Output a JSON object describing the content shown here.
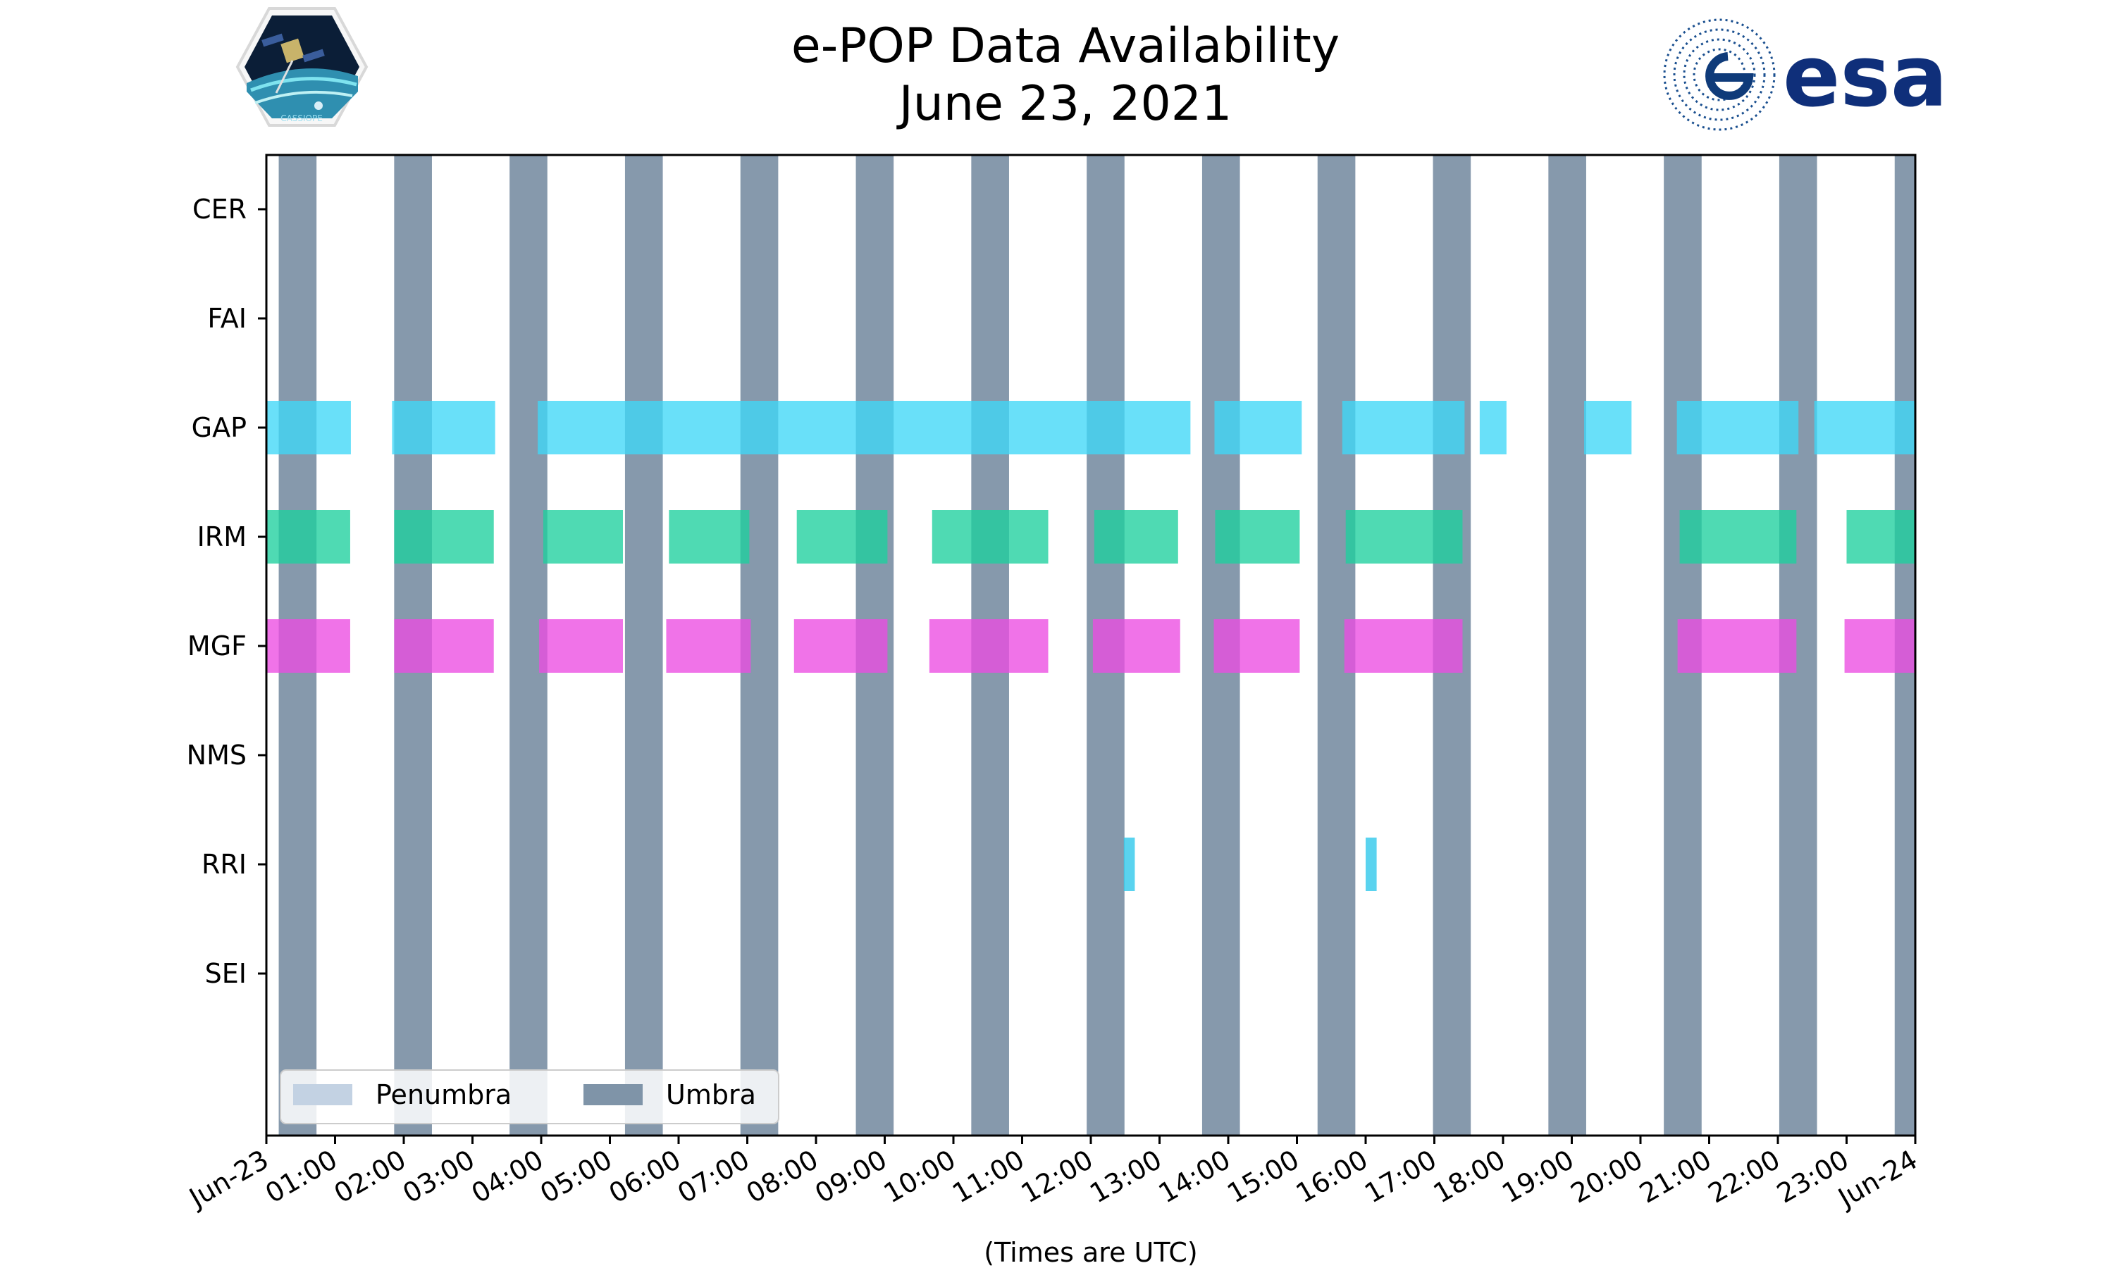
{
  "chart_data": {
    "type": "timeline",
    "title": "e-POP Data Availability",
    "subtitle": "June 23, 2021",
    "xlabel": "(Times are UTC)",
    "x_unit": "hours UTC",
    "xlim": [
      0,
      24
    ],
    "x_ticks": [
      {
        "hour": 0,
        "label": "Jun-23"
      },
      {
        "hour": 1,
        "label": "01:00"
      },
      {
        "hour": 2,
        "label": "02:00"
      },
      {
        "hour": 3,
        "label": "03:00"
      },
      {
        "hour": 4,
        "label": "04:00"
      },
      {
        "hour": 5,
        "label": "05:00"
      },
      {
        "hour": 6,
        "label": "06:00"
      },
      {
        "hour": 7,
        "label": "07:00"
      },
      {
        "hour": 8,
        "label": "08:00"
      },
      {
        "hour": 9,
        "label": "09:00"
      },
      {
        "hour": 10,
        "label": "10:00"
      },
      {
        "hour": 11,
        "label": "11:00"
      },
      {
        "hour": 12,
        "label": "12:00"
      },
      {
        "hour": 13,
        "label": "13:00"
      },
      {
        "hour": 14,
        "label": "14:00"
      },
      {
        "hour": 15,
        "label": "15:00"
      },
      {
        "hour": 16,
        "label": "16:00"
      },
      {
        "hour": 17,
        "label": "17:00"
      },
      {
        "hour": 18,
        "label": "18:00"
      },
      {
        "hour": 19,
        "label": "19:00"
      },
      {
        "hour": 20,
        "label": "20:00"
      },
      {
        "hour": 21,
        "label": "21:00"
      },
      {
        "hour": 22,
        "label": "22:00"
      },
      {
        "hour": 23,
        "label": "23:00"
      },
      {
        "hour": 24,
        "label": "Jun-24"
      }
    ],
    "instruments": [
      "CER",
      "FAI",
      "GAP",
      "IRM",
      "MGF",
      "NMS",
      "RRI",
      "SEI"
    ],
    "umbra": [
      [
        0.18,
        0.73
      ],
      [
        1.86,
        2.41
      ],
      [
        3.54,
        4.09
      ],
      [
        5.22,
        5.77
      ],
      [
        6.9,
        7.45
      ],
      [
        8.58,
        9.13
      ],
      [
        10.26,
        10.81
      ],
      [
        11.94,
        12.49
      ],
      [
        13.62,
        14.17
      ],
      [
        15.3,
        15.85
      ],
      [
        16.98,
        17.53
      ],
      [
        18.66,
        19.21
      ],
      [
        20.34,
        20.89
      ],
      [
        22.02,
        22.57
      ],
      [
        23.7,
        24.0
      ]
    ],
    "penumbra": [],
    "series": [
      {
        "name": "GAP",
        "color": "#3fd7f7",
        "intervals": [
          [
            0.0,
            1.23
          ],
          [
            1.83,
            3.33
          ],
          [
            3.95,
            13.45
          ],
          [
            13.8,
            15.07
          ],
          [
            15.66,
            17.44
          ],
          [
            17.66,
            18.05
          ],
          [
            19.18,
            19.87
          ],
          [
            20.53,
            22.3
          ],
          [
            22.53,
            24.0
          ]
        ]
      },
      {
        "name": "IRM",
        "color": "#1ed09e",
        "intervals": [
          [
            0.0,
            1.22
          ],
          [
            1.86,
            3.31
          ],
          [
            4.03,
            5.19
          ],
          [
            5.86,
            7.03
          ],
          [
            7.72,
            9.04
          ],
          [
            9.69,
            11.38
          ],
          [
            12.05,
            13.27
          ],
          [
            13.81,
            15.04
          ],
          [
            15.71,
            17.41
          ],
          [
            20.57,
            22.27
          ],
          [
            23.0,
            24.0
          ]
        ]
      },
      {
        "name": "MGF",
        "color": "#ec4ce2",
        "intervals": [
          [
            0.0,
            1.22
          ],
          [
            1.86,
            3.31
          ],
          [
            3.97,
            5.19
          ],
          [
            5.82,
            7.05
          ],
          [
            7.68,
            9.04
          ],
          [
            9.65,
            11.38
          ],
          [
            12.03,
            13.3
          ],
          [
            13.79,
            15.04
          ],
          [
            15.69,
            17.41
          ],
          [
            20.54,
            22.27
          ],
          [
            22.97,
            24.0
          ]
        ]
      },
      {
        "name": "RRI",
        "color": "#2bc6ea",
        "intervals": [
          [
            12.48,
            12.64
          ],
          [
            16.0,
            16.16
          ]
        ]
      }
    ],
    "legend": {
      "position": "lower-left",
      "items": [
        {
          "label": "Penumbra",
          "color": "#c3d2e3"
        },
        {
          "label": "Umbra",
          "color": "#7f94a8"
        }
      ]
    },
    "grid": false
  },
  "logos": {
    "left_badge_text": "CASSIOPE",
    "right_wordmark": "esa"
  }
}
